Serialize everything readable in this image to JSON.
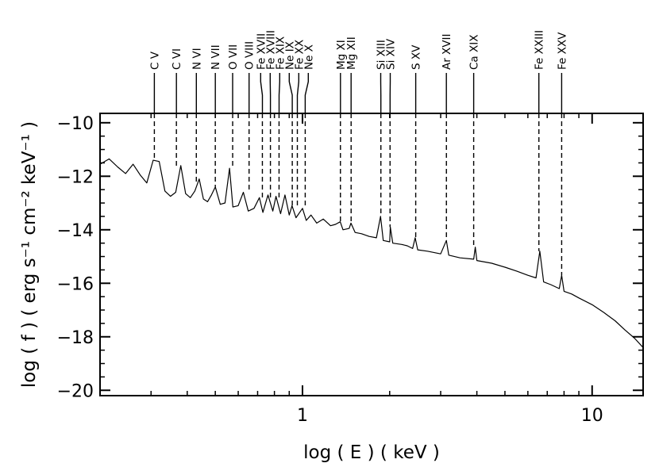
{
  "chart_data": {
    "type": "line",
    "title": "",
    "xlabel": "log ( E ) ( keV )",
    "ylabel": "log ( f ) ( erg s⁻¹ cm⁻² keV⁻¹ )",
    "x_scale": "log",
    "xlim": [
      0.2,
      15.0
    ],
    "ylim": [
      -20.2,
      -9.65
    ],
    "x_tick_labels": [
      {
        "value": 1,
        "label": "1"
      },
      {
        "value": 10,
        "label": "10"
      }
    ],
    "y_tick_labels": [
      {
        "value": -10,
        "label": "−10"
      },
      {
        "value": -12,
        "label": "−12"
      },
      {
        "value": -14,
        "label": "−14"
      },
      {
        "value": -16,
        "label": "−16"
      },
      {
        "value": -18,
        "label": "−18"
      },
      {
        "value": -20,
        "label": "−20"
      }
    ],
    "grid": false,
    "legend": "none",
    "series": [
      {
        "points": [
          [
            0.2,
            -11.55
          ],
          [
            0.215,
            -11.35
          ],
          [
            0.23,
            -11.65
          ],
          [
            0.245,
            -11.9
          ],
          [
            0.26,
            -11.55
          ],
          [
            0.275,
            -11.95
          ],
          [
            0.29,
            -12.25
          ],
          [
            0.305,
            -11.4
          ],
          [
            0.32,
            -11.45
          ],
          [
            0.335,
            -12.55
          ],
          [
            0.35,
            -12.75
          ],
          [
            0.365,
            -12.6
          ],
          [
            0.38,
            -11.6
          ],
          [
            0.395,
            -12.65
          ],
          [
            0.41,
            -12.8
          ],
          [
            0.425,
            -12.55
          ],
          [
            0.44,
            -12.1
          ],
          [
            0.455,
            -12.85
          ],
          [
            0.47,
            -12.95
          ],
          [
            0.485,
            -12.7
          ],
          [
            0.5,
            -12.4
          ],
          [
            0.52,
            -13.05
          ],
          [
            0.54,
            -13.0
          ],
          [
            0.56,
            -11.7
          ],
          [
            0.575,
            -13.15
          ],
          [
            0.6,
            -13.1
          ],
          [
            0.625,
            -12.6
          ],
          [
            0.65,
            -13.3
          ],
          [
            0.68,
            -13.2
          ],
          [
            0.71,
            -12.8
          ],
          [
            0.73,
            -13.35
          ],
          [
            0.76,
            -12.7
          ],
          [
            0.79,
            -13.3
          ],
          [
            0.81,
            -12.75
          ],
          [
            0.84,
            -13.4
          ],
          [
            0.87,
            -12.7
          ],
          [
            0.9,
            -13.45
          ],
          [
            0.92,
            -13.1
          ],
          [
            0.95,
            -13.55
          ],
          [
            1.0,
            -13.2
          ],
          [
            1.03,
            -13.65
          ],
          [
            1.07,
            -13.45
          ],
          [
            1.12,
            -13.75
          ],
          [
            1.18,
            -13.6
          ],
          [
            1.25,
            -13.85
          ],
          [
            1.3,
            -13.8
          ],
          [
            1.35,
            -13.7
          ],
          [
            1.38,
            -14.0
          ],
          [
            1.45,
            -13.95
          ],
          [
            1.47,
            -13.75
          ],
          [
            1.52,
            -14.1
          ],
          [
            1.6,
            -14.15
          ],
          [
            1.7,
            -14.25
          ],
          [
            1.8,
            -14.3
          ],
          [
            1.86,
            -13.5
          ],
          [
            1.9,
            -14.4
          ],
          [
            2.0,
            -14.45
          ],
          [
            2.01,
            -13.9
          ],
          [
            2.05,
            -14.5
          ],
          [
            2.2,
            -14.55
          ],
          [
            2.3,
            -14.6
          ],
          [
            2.4,
            -14.7
          ],
          [
            2.45,
            -14.3
          ],
          [
            2.5,
            -14.75
          ],
          [
            2.7,
            -14.8
          ],
          [
            3.0,
            -14.9
          ],
          [
            3.14,
            -14.4
          ],
          [
            3.2,
            -14.95
          ],
          [
            3.5,
            -15.05
          ],
          [
            3.9,
            -15.1
          ],
          [
            3.95,
            -14.65
          ],
          [
            4.0,
            -15.15
          ],
          [
            4.5,
            -15.25
          ],
          [
            5.0,
            -15.4
          ],
          [
            5.5,
            -15.55
          ],
          [
            6.0,
            -15.7
          ],
          [
            6.4,
            -15.8
          ],
          [
            6.6,
            -14.8
          ],
          [
            6.8,
            -15.95
          ],
          [
            7.2,
            -16.05
          ],
          [
            7.7,
            -16.2
          ],
          [
            7.85,
            -15.7
          ],
          [
            8.0,
            -16.3
          ],
          [
            8.5,
            -16.4
          ],
          [
            9.0,
            -16.55
          ],
          [
            10.0,
            -16.8
          ],
          [
            11.0,
            -17.1
          ],
          [
            12.0,
            -17.4
          ],
          [
            13.0,
            -17.75
          ],
          [
            14.0,
            -18.05
          ],
          [
            15.0,
            -18.4
          ]
        ]
      }
    ],
    "line_labels": [
      {
        "label": "C V",
        "energy": 0.308,
        "dashed_bottom_y": -11.4
      },
      {
        "label": "C VI",
        "energy": 0.367,
        "dashed_bottom_y": -11.7
      },
      {
        "label": "N VI",
        "energy": 0.43,
        "dashed_bottom_y": -12.2
      },
      {
        "label": "N VII",
        "energy": 0.5,
        "dashed_bottom_y": -12.4
      },
      {
        "label": "O VII",
        "energy": 0.574,
        "dashed_bottom_y": -11.7
      },
      {
        "label": "O VIII",
        "energy": 0.654,
        "dashed_bottom_y": -12.6
      },
      {
        "label": "Fe XVII",
        "energy": 0.727,
        "dashed_bottom_y": -12.8
      },
      {
        "label": "Fe XVIII",
        "energy": 0.775,
        "dashed_bottom_y": -12.8
      },
      {
        "label": "Fe XIX",
        "energy": 0.83,
        "dashed_bottom_y": -12.8
      },
      {
        "label": "Ne IX",
        "energy": 0.922,
        "dashed_bottom_y": -13.1
      },
      {
        "label": "Fe XX",
        "energy": 0.96,
        "dashed_bottom_y": -13.2
      },
      {
        "label": "Ne X",
        "energy": 1.022,
        "dashed_bottom_y": -13.2
      },
      {
        "label": "Mg XI",
        "energy": 1.352,
        "dashed_bottom_y": -13.75
      },
      {
        "label": "Mg XII",
        "energy": 1.472,
        "dashed_bottom_y": -13.75
      },
      {
        "label": "Si XIII",
        "energy": 1.865,
        "dashed_bottom_y": -13.5
      },
      {
        "label": "Si XIV",
        "energy": 2.006,
        "dashed_bottom_y": -13.9
      },
      {
        "label": "S XV",
        "energy": 2.46,
        "dashed_bottom_y": -14.3
      },
      {
        "label": "Ar XVII",
        "energy": 3.14,
        "dashed_bottom_y": -14.4
      },
      {
        "label": "Ca XIX",
        "energy": 3.9,
        "dashed_bottom_y": -14.65
      },
      {
        "label": "Fe XXIII",
        "energy": 6.55,
        "dashed_bottom_y": -14.8
      },
      {
        "label": "Fe XXV",
        "energy": 7.85,
        "dashed_bottom_y": -15.7
      }
    ]
  }
}
